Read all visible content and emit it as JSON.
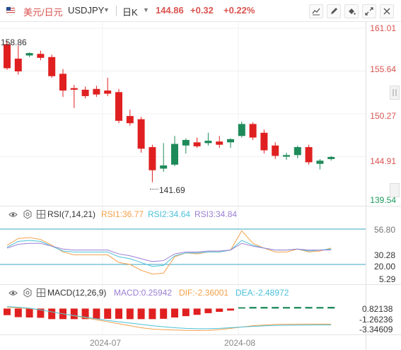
{
  "header": {
    "symbol_name": "美元/日元",
    "symbol_code": "USDJPY",
    "period": "日K",
    "price": "144.86",
    "change": "+0.32",
    "change_pct": "+0.22%"
  },
  "toolbar": {
    "icons": [
      "line-chart-icon",
      "pen-icon",
      "fill-icon",
      "expand-icon",
      "close-icon"
    ]
  },
  "price_axis": {
    "labels": [
      "161.01",
      "155.64",
      "150.27",
      "144.91",
      "139.54"
    ],
    "current_label": "144.91",
    "last_label": "139.54"
  },
  "annotations": {
    "high": "158.86",
    "low": "141.69"
  },
  "rsi": {
    "title": "RSI(7,14,21)",
    "rsi1": "RSI1:36.77",
    "rsi2": "RSI2:34.64",
    "rsi3": "RSI3:34.84",
    "axis": [
      "56.80",
      "30.28",
      "20.00",
      "5.29"
    ],
    "colors": {
      "rsi1": "#f5a04a",
      "rsi2": "#4bc0d9",
      "rsi3": "#9b7fd4"
    }
  },
  "macd": {
    "title": "MACD(12,26,9)",
    "macd": "MACD:0.25942",
    "dif": "DIF:-2.36001",
    "dea": "DEA:-2.48972",
    "axis": [
      "0.82138",
      "-1.26236",
      "-3.34609"
    ],
    "colors": {
      "macd": "#9b7fd4",
      "dif": "#f5a04a",
      "dea": "#4bc0d9"
    }
  },
  "time_axis": [
    "2024-07",
    "2024-08"
  ],
  "chart_data": {
    "type": "candlestick",
    "colors": {
      "up": "#1e8a5a",
      "down": "#e02020"
    },
    "candles": [
      {
        "o": 159.0,
        "h": 159.4,
        "c": 156.0,
        "l": 155.8
      },
      {
        "o": 157.2,
        "h": 158.86,
        "c": 155.6,
        "l": 155.2
      },
      {
        "o": 157.6,
        "h": 158.0,
        "c": 157.9,
        "l": 157.4
      },
      {
        "o": 157.8,
        "h": 158.2,
        "c": 157.3,
        "l": 157.0
      },
      {
        "o": 157.4,
        "h": 157.7,
        "c": 155.0,
        "l": 154.8
      },
      {
        "o": 155.3,
        "h": 155.9,
        "c": 153.2,
        "l": 152.4
      },
      {
        "o": 153.5,
        "h": 153.9,
        "c": 153.3,
        "l": 151.0
      },
      {
        "o": 153.3,
        "h": 153.7,
        "c": 152.5,
        "l": 152.2
      },
      {
        "o": 153.4,
        "h": 153.8,
        "c": 152.7,
        "l": 152.4
      },
      {
        "o": 153.2,
        "h": 154.8,
        "c": 152.8,
        "l": 152.5
      },
      {
        "o": 153.0,
        "h": 153.4,
        "c": 149.4,
        "l": 149.1
      },
      {
        "o": 150.0,
        "h": 150.8,
        "c": 149.1,
        "l": 148.8
      },
      {
        "o": 149.6,
        "h": 149.9,
        "c": 145.9,
        "l": 145.4
      },
      {
        "o": 146.1,
        "h": 146.4,
        "c": 143.2,
        "l": 141.69
      },
      {
        "o": 143.4,
        "h": 146.6,
        "c": 143.8,
        "l": 143.0
      },
      {
        "o": 143.9,
        "h": 147.5,
        "c": 146.5,
        "l": 143.7
      },
      {
        "o": 146.3,
        "h": 147.2,
        "c": 147.0,
        "l": 145.3
      },
      {
        "o": 146.7,
        "h": 147.3,
        "c": 146.2,
        "l": 146.0
      },
      {
        "o": 146.6,
        "h": 147.9,
        "c": 146.9,
        "l": 146.3
      },
      {
        "o": 146.8,
        "h": 147.5,
        "c": 146.4,
        "l": 146.0
      },
      {
        "o": 146.7,
        "h": 147.2,
        "c": 147.1,
        "l": 146.0
      },
      {
        "o": 147.5,
        "h": 149.3,
        "c": 149.0,
        "l": 147.3
      },
      {
        "o": 149.0,
        "h": 149.2,
        "c": 147.3,
        "l": 147.0
      },
      {
        "o": 147.9,
        "h": 148.3,
        "c": 145.7,
        "l": 145.3
      },
      {
        "o": 146.3,
        "h": 146.7,
        "c": 145.0,
        "l": 144.6
      },
      {
        "o": 144.9,
        "h": 145.4,
        "c": 145.1,
        "l": 144.5
      },
      {
        "o": 145.1,
        "h": 146.3,
        "c": 146.1,
        "l": 144.7
      },
      {
        "o": 146.1,
        "h": 146.4,
        "c": 144.2,
        "l": 143.9
      },
      {
        "o": 144.0,
        "h": 144.6,
        "c": 144.4,
        "l": 143.3
      },
      {
        "o": 144.6,
        "h": 145.0,
        "c": 144.86,
        "l": 144.4
      }
    ],
    "rsi_axis_range": [
      5.29,
      56.8
    ],
    "rsi1": [
      40,
      47,
      48,
      46,
      40,
      33,
      30,
      30,
      30,
      30,
      22,
      20,
      14,
      10,
      11,
      28,
      32,
      31,
      33,
      33,
      35,
      55,
      42,
      37,
      33,
      33,
      36,
      33,
      34,
      37
    ],
    "rsi2": [
      38,
      44,
      45,
      44,
      39,
      34,
      33,
      33,
      33,
      33,
      28,
      26,
      22,
      18,
      19,
      29,
      32,
      32,
      33,
      33,
      35,
      45,
      40,
      37,
      35,
      35,
      36,
      34,
      35,
      36
    ],
    "rsi3": [
      37,
      41,
      42,
      42,
      39,
      36,
      35,
      35,
      35,
      35,
      31,
      29,
      26,
      23,
      24,
      31,
      33,
      33,
      34,
      34,
      35,
      42,
      39,
      37,
      35,
      35,
      36,
      35,
      35,
      35
    ],
    "macd_axis_range": [
      -3.6,
      0.9
    ],
    "macd_hist": [
      -1.0,
      -1.3,
      -1.35,
      -1.4,
      -1.6,
      -1.6,
      -1.6,
      -1.6,
      -1.55,
      -1.55,
      -1.55,
      -1.6,
      -1.6,
      -1.6,
      -1.55,
      -1.35,
      -1.15,
      -0.95,
      -0.7,
      -0.5,
      -0.3,
      0.2,
      0.25,
      0.25,
      0.25,
      0.24,
      0.25,
      0.25,
      0.24,
      0.26
    ],
    "dif": [
      0.2,
      0.1,
      0.0,
      -0.2,
      -0.5,
      -0.8,
      -1.1,
      -1.4,
      -1.7,
      -2.0,
      -2.3,
      -2.6,
      -2.9,
      -3.1,
      -3.2,
      -3.25,
      -3.3,
      -3.32,
      -3.3,
      -3.2,
      -3.0,
      -2.8,
      -2.6,
      -2.5,
      -2.4,
      -2.38,
      -2.37,
      -2.36,
      -2.36,
      -2.36
    ],
    "dea": [
      0.3,
      0.2,
      0.05,
      -0.2,
      -0.5,
      -0.8,
      -1.05,
      -1.3,
      -1.55,
      -1.8,
      -2.0,
      -2.2,
      -2.4,
      -2.6,
      -2.75,
      -2.9,
      -3.0,
      -3.05,
      -3.05,
      -3.0,
      -2.9,
      -2.8,
      -2.7,
      -2.62,
      -2.56,
      -2.53,
      -2.51,
      -2.5,
      -2.49,
      -2.49
    ]
  }
}
